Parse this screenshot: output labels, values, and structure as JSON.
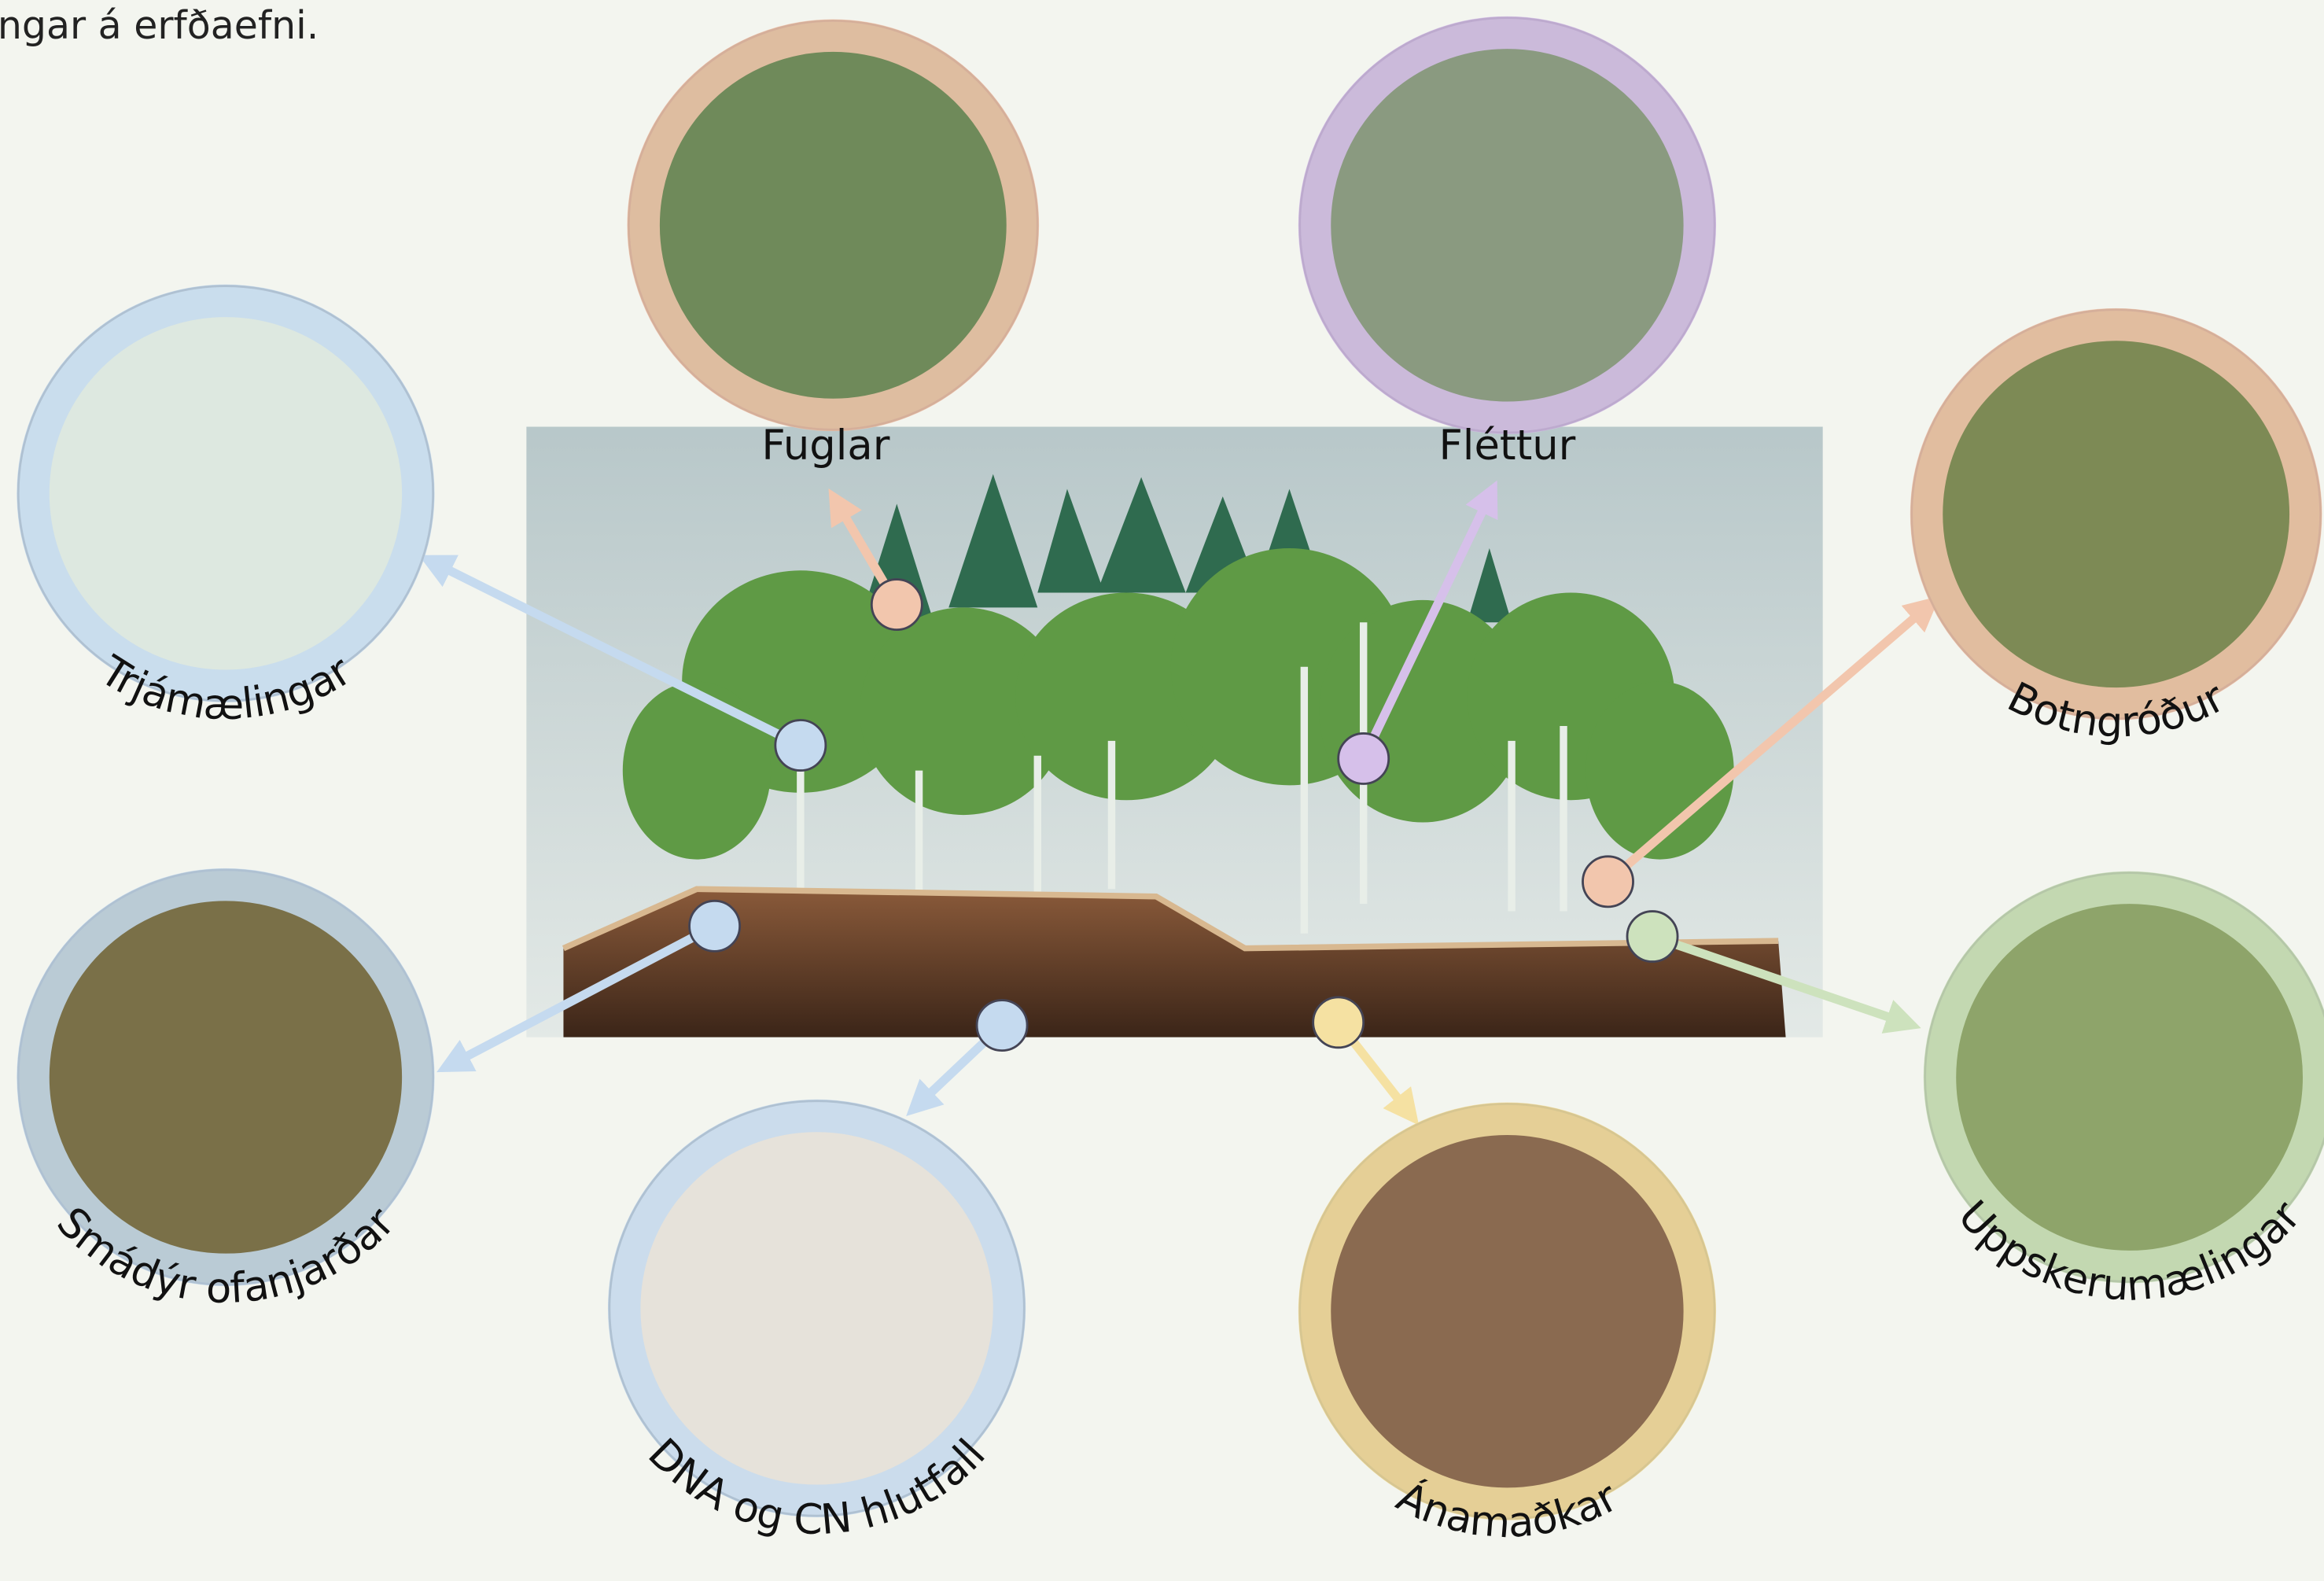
{
  "header": {
    "text": "ngar á erfðaefni."
  },
  "nodes": [
    {
      "label": "Fuglar"
    },
    {
      "label": "Fléttur"
    },
    {
      "label": "Trjámælingar"
    },
    {
      "label": "Botngróður"
    },
    {
      "label": "Smádýr ofanjarðar"
    },
    {
      "label": "Uppskerumælingar"
    },
    {
      "label": "DNA og CN hlutfall"
    },
    {
      "label": "Ánamaðkar"
    }
  ]
}
